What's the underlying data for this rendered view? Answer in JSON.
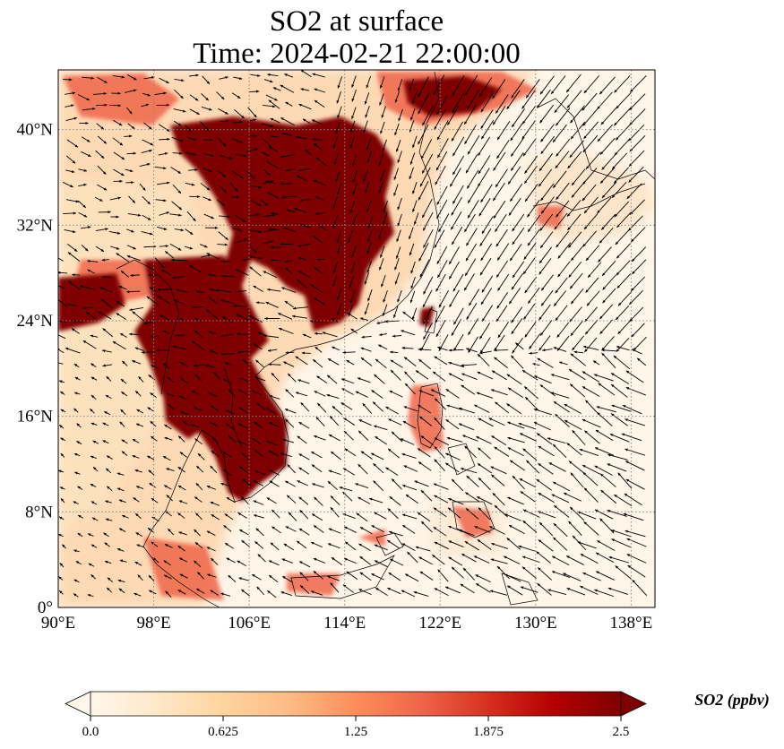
{
  "figure": {
    "title_line1": "SO2 at surface",
    "title_line2": "Time: 2024-02-21 22:00:00"
  },
  "map": {
    "extent": {
      "lon_min": 90,
      "lon_max": 140,
      "lat_min": 0,
      "lat_max": 45
    },
    "lon_ticks": [
      90,
      98,
      106,
      114,
      122,
      130,
      138
    ],
    "lon_tick_labels": [
      "90°E",
      "98°E",
      "106°E",
      "114°E",
      "122°E",
      "130°E",
      "138°E"
    ],
    "lat_ticks": [
      0,
      8,
      16,
      24,
      32,
      40
    ],
    "lat_tick_labels": [
      "0°",
      "8°N",
      "16°N",
      "24°N",
      "32°N",
      "40°N"
    ],
    "gridlines": true,
    "field_variable": "SO2",
    "vector_field": "wind"
  },
  "colorbar": {
    "title": "SO2 (ppbv)",
    "min": 0.0,
    "max": 2.5,
    "tick_values": [
      0.0,
      0.625,
      1.25,
      1.875,
      2.5
    ],
    "tick_labels": [
      "0.0",
      "0.625",
      "1.25",
      "1.875",
      "2.5"
    ],
    "extend": "both",
    "colormap": "OrRd",
    "colors": [
      "#fff7ec",
      "#fee8c8",
      "#fdd49e",
      "#fdbb84",
      "#fc8d59",
      "#ef6548",
      "#d7301f",
      "#b30000",
      "#7f0000"
    ]
  }
}
